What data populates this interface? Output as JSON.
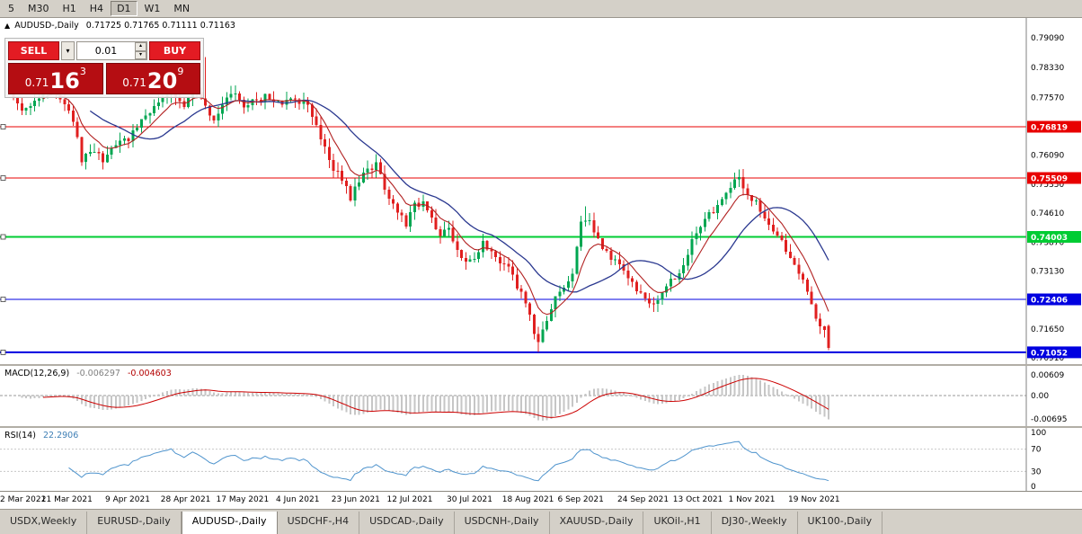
{
  "toolbar": {
    "timeframes": [
      "5",
      "M30",
      "H1",
      "H4",
      "D1",
      "W1",
      "MN"
    ],
    "active": "D1"
  },
  "chart_header": {
    "symbol": "AUDUSD-,Daily",
    "ohlc_text": "0.71725 0.71765 0.71111 0.71163"
  },
  "trade_widget": {
    "sell_label": "SELL",
    "buy_label": "BUY",
    "volume": "0.01",
    "sell_price": {
      "prefix": "0.71",
      "big": "16",
      "sup": "3"
    },
    "buy_price": {
      "prefix": "0.71",
      "big": "20",
      "sup": "9"
    }
  },
  "indicators": {
    "macd": {
      "label": "MACD(12,26,9)",
      "value_hist": "-0.006297",
      "value_signal": "-0.004603",
      "axis": [
        [
          "0.00609",
          0.00609
        ],
        [
          "0.00",
          0
        ],
        [
          "-0.00695",
          -0.00695
        ]
      ]
    },
    "rsi": {
      "label": "RSI(14)",
      "value": "22.2906",
      "period": 14,
      "axis": [
        [
          "100",
          100
        ],
        [
          "70",
          70
        ],
        [
          "30",
          30
        ],
        [
          "0",
          0
        ]
      ],
      "dashed_levels": [
        70,
        30
      ]
    }
  },
  "tabs": {
    "active_index": 2,
    "items": [
      "USDX,Weekly",
      "EURUSD-,Daily",
      "AUDUSD-,Daily",
      "USDCHF-,H4",
      "USDCAD-,Daily",
      "USDCNH-,Daily",
      "XAUUSD-,Daily",
      "UKOil-,H1",
      "DJ30-,Weekly",
      "UK100-,Daily"
    ]
  },
  "colors": {
    "up": "#00a651",
    "down": "#e01f1f",
    "ma_fast": "#b22222",
    "ma_slow": "#2b3990",
    "macd_hist": "#c6c6c6",
    "macd_signal": "#cc0000",
    "rsi_line": "#4f94cd",
    "level_red": "#e80000",
    "level_green": "#00cc33",
    "level_blue": "#0000e0"
  },
  "chart_data": {
    "type": "candlestick",
    "symbol": "AUDUSD",
    "timeframe": "Daily",
    "ohlc_current": {
      "open": 0.71725,
      "high": 0.71765,
      "low": 0.71111,
      "close": 0.71163
    },
    "price_range": [
      0.7075,
      0.796
    ],
    "candle_count": 193,
    "price_ticks": [
      [
        0.7909,
        "0.79090"
      ],
      [
        0.7833,
        "0.78330"
      ],
      [
        0.7757,
        "0.77570"
      ],
      [
        0.7609,
        "0.76090"
      ],
      [
        0.7535,
        "0.75350"
      ],
      [
        0.7461,
        "0.74610"
      ],
      [
        0.7387,
        "0.73870"
      ],
      [
        0.7313,
        "0.73130"
      ],
      [
        0.7165,
        "0.71650"
      ],
      [
        0.7091,
        "0.70910"
      ]
    ],
    "levels": [
      {
        "price": 0.76819,
        "label": "0.76819",
        "color": "#e80000",
        "width": 1
      },
      {
        "price": 0.75509,
        "label": "0.75509",
        "color": "#e80000",
        "width": 1
      },
      {
        "price": 0.74003,
        "label": "0.74003",
        "color": "#00cc33",
        "width": 2
      },
      {
        "price": 0.72406,
        "label": "0.72406",
        "color": "#0000e0",
        "width": 1
      },
      {
        "price": 0.71052,
        "label": "0.71052",
        "color": "#0000e0",
        "width": 2
      }
    ],
    "close_anchors": [
      [
        0,
        0.777
      ],
      [
        3,
        0.7718
      ],
      [
        6,
        0.7745
      ],
      [
        9,
        0.7792
      ],
      [
        13,
        0.774
      ],
      [
        15,
        0.77
      ],
      [
        17,
        0.7596
      ],
      [
        20,
        0.7625
      ],
      [
        22,
        0.76
      ],
      [
        25,
        0.764
      ],
      [
        28,
        0.765
      ],
      [
        31,
        0.7705
      ],
      [
        34,
        0.773
      ],
      [
        38,
        0.7772
      ],
      [
        41,
        0.774
      ],
      [
        43,
        0.778
      ],
      [
        45,
        0.7748
      ],
      [
        48,
        0.7702
      ],
      [
        52,
        0.7768
      ],
      [
        55,
        0.774
      ],
      [
        58,
        0.7752
      ],
      [
        61,
        0.776
      ],
      [
        64,
        0.7745
      ],
      [
        67,
        0.7752
      ],
      [
        70,
        0.7735
      ],
      [
        73,
        0.7655
      ],
      [
        75,
        0.7595
      ],
      [
        78,
        0.7545
      ],
      [
        80,
        0.75
      ],
      [
        83,
        0.7565
      ],
      [
        86,
        0.7585
      ],
      [
        88,
        0.752
      ],
      [
        91,
        0.747
      ],
      [
        93,
        0.7435
      ],
      [
        95,
        0.748
      ],
      [
        97,
        0.749
      ],
      [
        99,
        0.745
      ],
      [
        101,
        0.74
      ],
      [
        103,
        0.743
      ],
      [
        105,
        0.7365
      ],
      [
        107,
        0.733
      ],
      [
        109,
        0.735
      ],
      [
        111,
        0.7385
      ],
      [
        113,
        0.7362
      ],
      [
        115,
        0.734
      ],
      [
        117,
        0.7318
      ],
      [
        119,
        0.7275
      ],
      [
        121,
        0.723
      ],
      [
        123,
        0.716
      ],
      [
        124,
        0.7128
      ],
      [
        126,
        0.7185
      ],
      [
        128,
        0.724
      ],
      [
        130,
        0.7265
      ],
      [
        132,
        0.73
      ],
      [
        134,
        0.7435
      ],
      [
        136,
        0.7445
      ],
      [
        138,
        0.7395
      ],
      [
        140,
        0.736
      ],
      [
        142,
        0.7335
      ],
      [
        144,
        0.731
      ],
      [
        146,
        0.728
      ],
      [
        148,
        0.725
      ],
      [
        150,
        0.723
      ],
      [
        152,
        0.7238
      ],
      [
        154,
        0.727
      ],
      [
        156,
        0.73
      ],
      [
        158,
        0.733
      ],
      [
        160,
        0.739
      ],
      [
        162,
        0.743
      ],
      [
        164,
        0.7455
      ],
      [
        166,
        0.7485
      ],
      [
        168,
        0.7515
      ],
      [
        170,
        0.754
      ],
      [
        171,
        0.7548
      ],
      [
        173,
        0.751
      ],
      [
        175,
        0.7485
      ],
      [
        177,
        0.7455
      ],
      [
        179,
        0.742
      ],
      [
        181,
        0.739
      ],
      [
        183,
        0.735
      ],
      [
        185,
        0.731
      ],
      [
        187,
        0.7255
      ],
      [
        189,
        0.72
      ],
      [
        191,
        0.7158
      ],
      [
        192,
        0.71163
      ]
    ],
    "forced_wicks": [
      [
        124,
        "l",
        0.7106
      ],
      [
        135,
        "h",
        0.7478
      ],
      [
        171,
        "h",
        0.7556
      ],
      [
        46,
        "h",
        0.786
      ],
      [
        9,
        "h",
        0.7806
      ]
    ],
    "ma_periods": {
      "fast_ema": 8,
      "slow_sma": 20
    },
    "macd_params": {
      "fast": 12,
      "slow": 26,
      "signal": 9
    },
    "macd_current": [
      -0.006297,
      -0.004603
    ],
    "rsi_current": 22.2906,
    "date_labels": [
      {
        "label": "2 Mar 2021",
        "idx": 0
      },
      {
        "label": "21 Mar 2021",
        "idx": 13
      },
      {
        "label": "9 Apr 2021",
        "idx": 28
      },
      {
        "label": "28 Apr 2021",
        "idx": 41
      },
      {
        "label": "17 May 2021",
        "idx": 54
      },
      {
        "label": "4 Jun 2021",
        "idx": 68
      },
      {
        "label": "23 Jun 2021",
        "idx": 81
      },
      {
        "label": "12 Jul 2021",
        "idx": 94
      },
      {
        "label": "30 Jul 2021",
        "idx": 108
      },
      {
        "label": "18 Aug 2021",
        "idx": 121
      },
      {
        "label": "6 Sep 2021",
        "idx": 134
      },
      {
        "label": "24 Sep 2021",
        "idx": 148
      },
      {
        "label": "13 Oct 2021",
        "idx": 161
      },
      {
        "label": "1 Nov 2021",
        "idx": 174
      },
      {
        "label": "19 Nov 2021",
        "idx": 188
      }
    ]
  }
}
